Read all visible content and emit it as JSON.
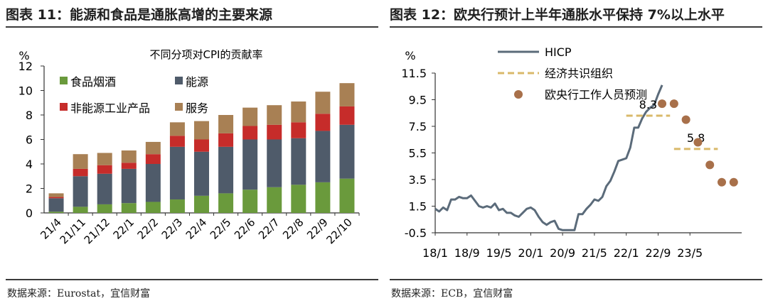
{
  "left": {
    "figure_title": "图表 11：能源和食品是通胀高增的主要来源",
    "source": "数据来源：Eurostat，宜信财富",
    "source_prefix": "数据来源：",
    "source_en": "Eurostat",
    "source_suffix": "，宜信财富",
    "chart_data": {
      "type": "bar",
      "stacked": true,
      "title": "不同分项对CPI的贡献率",
      "ylabel": "%",
      "ylim": [
        0,
        12
      ],
      "yticks": [
        "0",
        "2",
        "4",
        "6",
        "8",
        "10",
        "12"
      ],
      "categories": [
        "21/4",
        "21/11",
        "21/12",
        "22/1",
        "22/2",
        "22/3",
        "22/4",
        "22/5",
        "22/6",
        "22/7",
        "22/8",
        "22/9",
        "22/10"
      ],
      "series": [
        {
          "name": "食品烟酒",
          "color": "#6a9a3c",
          "values": [
            0.1,
            0.5,
            0.7,
            0.8,
            0.9,
            1.1,
            1.4,
            1.6,
            1.9,
            2.1,
            2.3,
            2.5,
            2.8
          ]
        },
        {
          "name": "能源",
          "color": "#4f5b6a",
          "values": [
            1.1,
            2.5,
            2.5,
            2.8,
            3.1,
            4.3,
            3.6,
            3.8,
            4.1,
            3.9,
            3.8,
            4.2,
            4.4
          ]
        },
        {
          "name": "非能源工业产品",
          "color": "#c62c2a",
          "values": [
            0.1,
            0.6,
            0.7,
            0.5,
            0.8,
            0.9,
            1.0,
            1.1,
            1.1,
            1.2,
            1.3,
            1.4,
            1.5
          ]
        },
        {
          "name": "服务",
          "color": "#a88054",
          "values": [
            0.3,
            1.2,
            1.0,
            1.0,
            1.0,
            1.1,
            1.5,
            1.5,
            1.5,
            1.6,
            1.7,
            1.8,
            1.9
          ]
        }
      ],
      "legend_placement": "top-left",
      "grid": false
    }
  },
  "right": {
    "figure_title": "图表 12：欧央行预计上半年通胀水平保持 7%以上水平",
    "source": "数据来源：ECB，宜信财富",
    "source_prefix": "数据来源：",
    "source_en": "ECB",
    "source_suffix": "，宜信财富",
    "chart_data": {
      "type": "line",
      "ylabel": "%",
      "ylim": [
        -0.5,
        11.5
      ],
      "yticks": [
        "11.5",
        "9.5",
        "7.5",
        "5.5",
        "3.5",
        "1.5",
        "-0.5"
      ],
      "xticks": [
        "18/1",
        "18/9",
        "19/5",
        "20/1",
        "20/9",
        "21/5",
        "22/1",
        "22/9",
        "23/5"
      ],
      "x_range": [
        "2018-01",
        "2024-06"
      ],
      "series": [
        {
          "name": "HICP",
          "color": "#5b6b7a",
          "style": "solid",
          "x": [
            "2018-01",
            "2018-02",
            "2018-03",
            "2018-04",
            "2018-05",
            "2018-06",
            "2018-07",
            "2018-08",
            "2018-09",
            "2018-10",
            "2018-11",
            "2018-12",
            "2019-01",
            "2019-02",
            "2019-03",
            "2019-04",
            "2019-05",
            "2019-06",
            "2019-07",
            "2019-08",
            "2019-09",
            "2019-10",
            "2019-11",
            "2019-12",
            "2020-01",
            "2020-02",
            "2020-03",
            "2020-04",
            "2020-05",
            "2020-06",
            "2020-07",
            "2020-08",
            "2020-09",
            "2020-10",
            "2020-11",
            "2020-12",
            "2021-01",
            "2021-02",
            "2021-03",
            "2021-04",
            "2021-05",
            "2021-06",
            "2021-07",
            "2021-08",
            "2021-09",
            "2021-10",
            "2021-11",
            "2021-12",
            "2022-01",
            "2022-02",
            "2022-03",
            "2022-04",
            "2022-05",
            "2022-06",
            "2022-07",
            "2022-08",
            "2022-09",
            "2022-10"
          ],
          "y": [
            1.3,
            1.1,
            1.4,
            1.2,
            2.0,
            2.0,
            2.2,
            2.1,
            2.1,
            2.3,
            1.9,
            1.5,
            1.4,
            1.5,
            1.4,
            1.7,
            1.2,
            1.3,
            1.0,
            1.0,
            0.8,
            0.7,
            1.0,
            1.3,
            1.4,
            1.2,
            0.7,
            0.3,
            0.1,
            0.3,
            0.4,
            -0.2,
            -0.3,
            -0.3,
            -0.3,
            -0.3,
            0.9,
            0.9,
            1.3,
            1.6,
            2.0,
            1.9,
            2.2,
            3.0,
            3.4,
            4.1,
            4.9,
            5.0,
            5.1,
            5.9,
            7.4,
            7.4,
            8.1,
            8.6,
            8.9,
            9.1,
            9.9,
            10.6
          ]
        },
        {
          "name": "经济共识组织",
          "color": "#d9b96a",
          "style": "dashed",
          "segments": [
            {
              "x": [
                "2022-01",
                "2022-12"
              ],
              "y": 8.3,
              "label": "8.3"
            },
            {
              "x": [
                "2023-01",
                "2023-12"
              ],
              "y": 5.8,
              "label": "5.8"
            }
          ]
        },
        {
          "name": "欧央行工作人员预测",
          "color": "#a8704a",
          "style": "markers",
          "x": [
            "2022-10",
            "2023-01",
            "2023-04",
            "2023-07",
            "2023-10",
            "2024-01",
            "2024-04"
          ],
          "y": [
            9.2,
            9.2,
            8.0,
            6.3,
            4.6,
            3.3,
            3.3
          ]
        }
      ],
      "legend_placement": "top-left",
      "grid": false
    }
  }
}
